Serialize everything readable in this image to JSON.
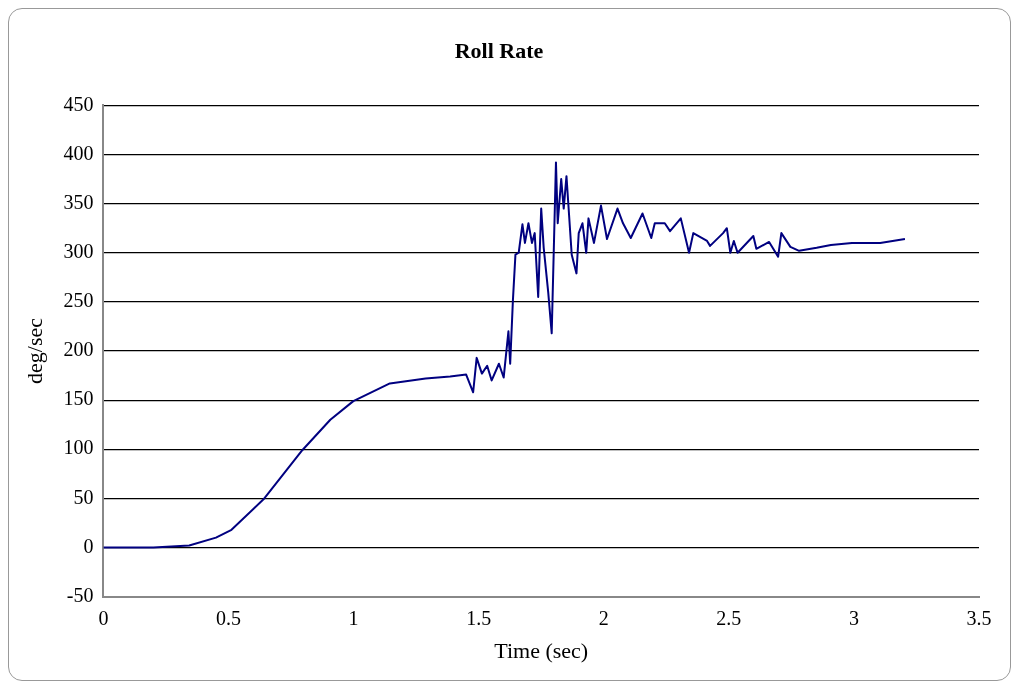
{
  "chart_data": {
    "type": "line",
    "title": "Roll Rate",
    "xlabel": "Time (sec)",
    "ylabel": "deg/sec",
    "xlim": [
      0,
      3.5
    ],
    "xticks": [
      0,
      0.5,
      1,
      1.5,
      2,
      2.5,
      3,
      3.5
    ],
    "ylim": [
      -50,
      450
    ],
    "yticks": [
      -50,
      0,
      50,
      100,
      150,
      200,
      250,
      300,
      350,
      400,
      450
    ],
    "grid": "y",
    "legend": false,
    "marker": "none",
    "line_style": "solid",
    "series": [
      {
        "color": "#000080",
        "x": [
          0,
          0.2,
          0.343,
          0.45,
          0.512,
          0.64,
          0.795,
          0.907,
          0.999,
          1.145,
          1.288,
          1.386,
          1.45,
          1.478,
          1.492,
          1.513,
          1.534,
          1.552,
          1.581,
          1.6,
          1.619,
          1.626,
          1.637,
          1.647,
          1.66,
          1.675,
          1.685,
          1.699,
          1.713,
          1.724,
          1.738,
          1.75,
          1.76,
          1.778,
          1.792,
          1.809,
          1.816,
          1.83,
          1.84,
          1.851,
          1.872,
          1.891,
          1.9,
          1.915,
          1.93,
          1.939,
          1.961,
          1.989,
          2.013,
          2.055,
          2.077,
          2.108,
          2.155,
          2.19,
          2.204,
          2.244,
          2.265,
          2.308,
          2.341,
          2.358,
          2.413,
          2.425,
          2.477,
          2.492,
          2.506,
          2.52,
          2.535,
          2.598,
          2.61,
          2.661,
          2.697,
          2.71,
          2.746,
          2.781,
          2.851,
          2.908,
          2.992,
          3.105,
          3.204
        ],
        "values": [
          0,
          0,
          2,
          10,
          18,
          49,
          99,
          130,
          149,
          167,
          172,
          174,
          176,
          158,
          193,
          177,
          185,
          170,
          187,
          173,
          220,
          187,
          252,
          298,
          300,
          329,
          310,
          330,
          310,
          320,
          255,
          345,
          305,
          260,
          218,
          392,
          330,
          375,
          345,
          378,
          298,
          279,
          320,
          330,
          300,
          335,
          310,
          348,
          314,
          345,
          330,
          315,
          340,
          315,
          330,
          330,
          322,
          335,
          300,
          320,
          312,
          307,
          320,
          325,
          300,
          312,
          300,
          317,
          304,
          311,
          296,
          320,
          306,
          302,
          305,
          308,
          310,
          310,
          314
        ]
      }
    ]
  }
}
